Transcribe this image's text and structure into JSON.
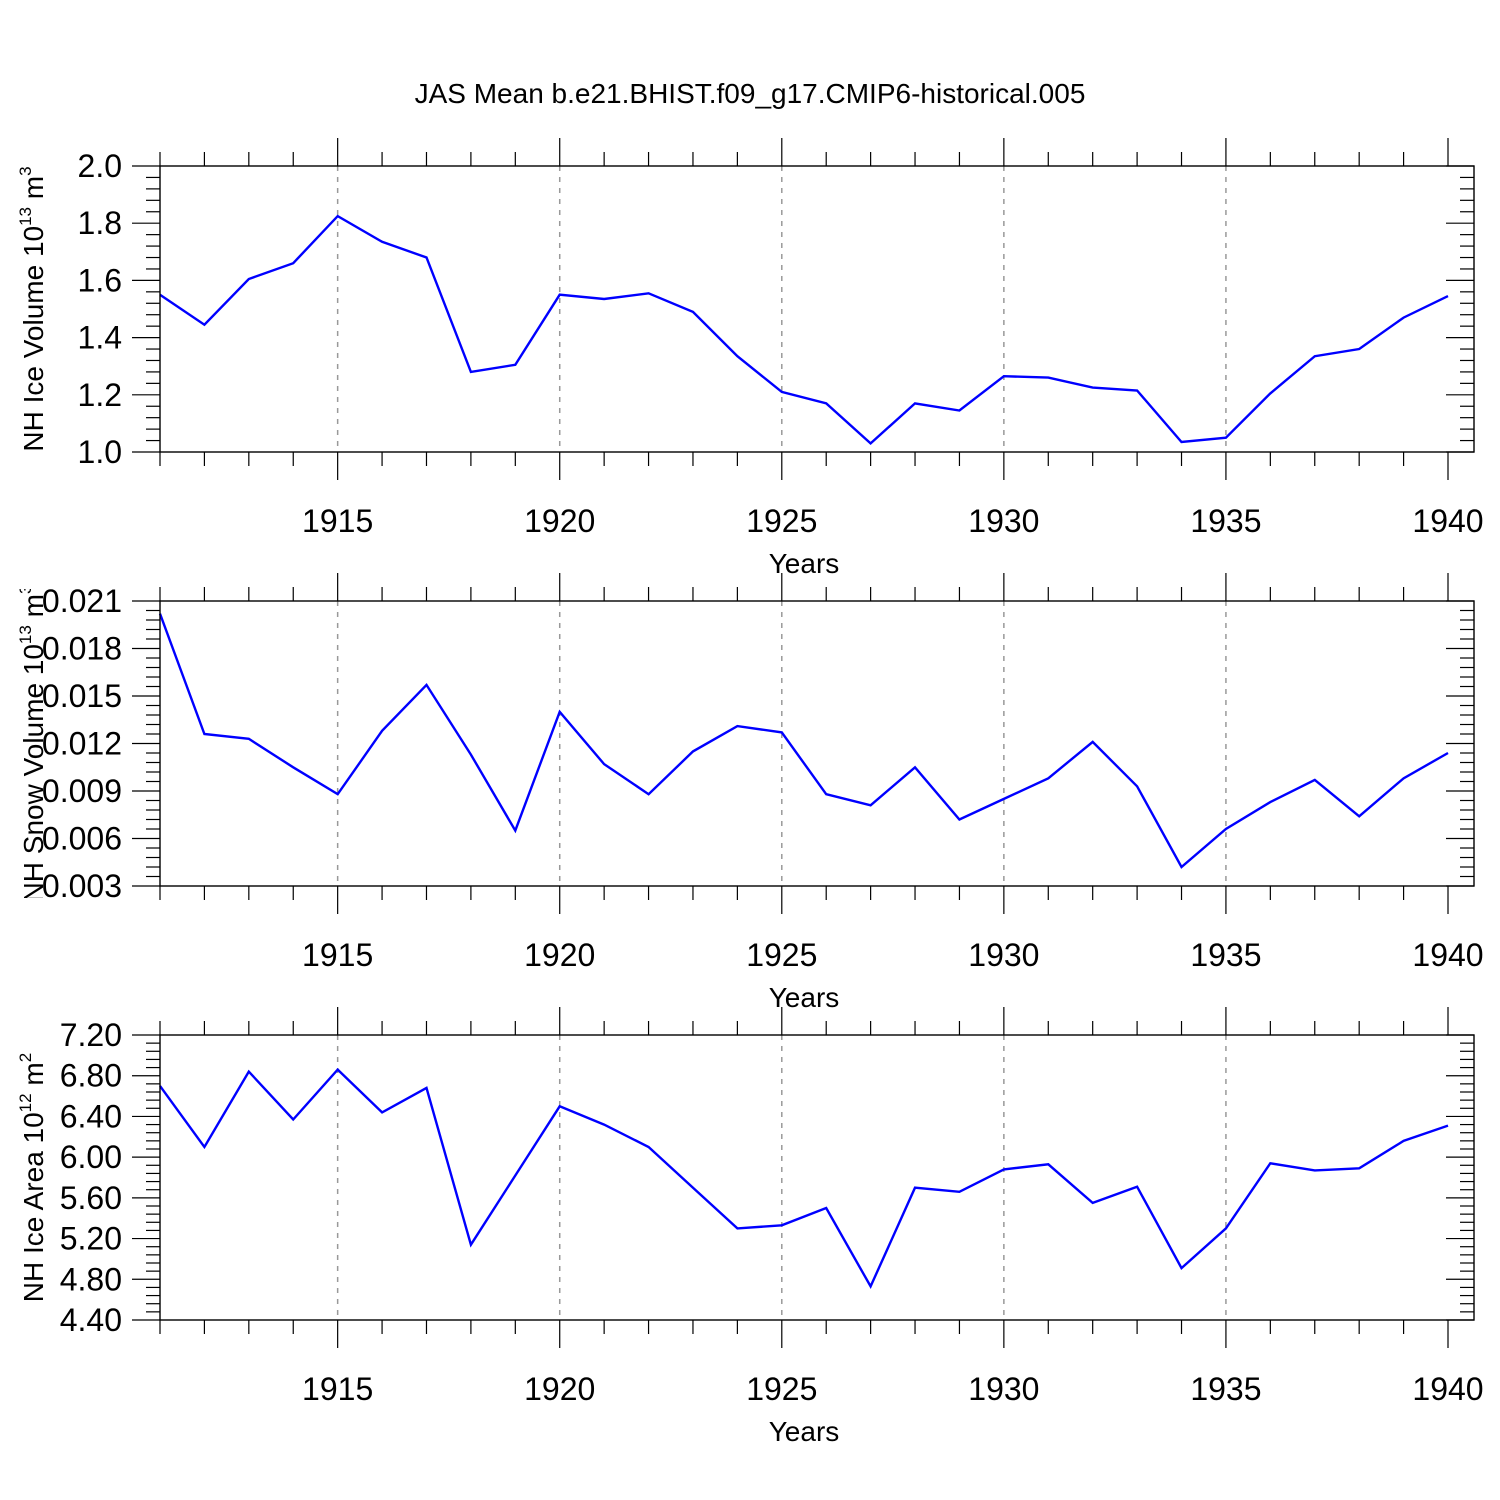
{
  "title": "JAS Mean b.e21.BHIST.f09_g17.CMIP6-historical.005",
  "colors": {
    "line": "#0000ff",
    "grid": "#999999",
    "axis": "#000000"
  },
  "chart_data": [
    {
      "type": "line",
      "xlabel": "Years",
      "ylabel": {
        "pre": "NH Ice Volume 10",
        "sup": "13",
        "mid": " m",
        "sup2": "3"
      },
      "xlim": [
        1911,
        1940
      ],
      "ylim": [
        1.0,
        2.0
      ],
      "x_ticks": [
        "1915",
        "1920",
        "1925",
        "1930",
        "1935",
        "1940"
      ],
      "y_ticks": [
        "1.0",
        "1.2",
        "1.4",
        "1.6",
        "1.8",
        "2.0"
      ],
      "grid": "vertical dashed at labeled years",
      "x": [
        1911,
        1912,
        1913,
        1914,
        1915,
        1916,
        1917,
        1918,
        1919,
        1920,
        1921,
        1922,
        1923,
        1924,
        1925,
        1926,
        1927,
        1928,
        1929,
        1930,
        1931,
        1932,
        1933,
        1934,
        1935,
        1936,
        1937,
        1938,
        1939,
        1940
      ],
      "values": [
        1.55,
        1.445,
        1.605,
        1.66,
        1.825,
        1.735,
        1.68,
        1.28,
        1.305,
        1.55,
        1.535,
        1.555,
        1.49,
        1.335,
        1.21,
        1.17,
        1.03,
        1.17,
        1.145,
        1.265,
        1.26,
        1.225,
        1.215,
        1.035,
        1.05,
        1.205,
        1.335,
        1.36,
        1.47,
        1.545
      ]
    },
    {
      "type": "line",
      "xlabel": "Years",
      "ylabel": {
        "pre": "NH Snow Volume 10",
        "sup": "13",
        "mid": " m",
        "sup2": "3"
      },
      "xlim": [
        1911,
        1940
      ],
      "ylim": [
        0.003,
        0.021
      ],
      "x_ticks": [
        "1915",
        "1920",
        "1925",
        "1930",
        "1935",
        "1940"
      ],
      "y_ticks": [
        "0.003",
        "0.006",
        "0.009",
        "0.012",
        "0.015",
        "0.018",
        "0.021"
      ],
      "grid": "vertical dashed at labeled years",
      "x": [
        1911,
        1912,
        1913,
        1914,
        1915,
        1916,
        1917,
        1918,
        1919,
        1920,
        1921,
        1922,
        1923,
        1924,
        1925,
        1926,
        1927,
        1928,
        1929,
        1930,
        1931,
        1932,
        1933,
        1934,
        1935,
        1936,
        1937,
        1938,
        1939,
        1940
      ],
      "values": [
        0.0202,
        0.0126,
        0.0123,
        0.0105,
        0.0088,
        0.0128,
        0.0157,
        0.0113,
        0.0065,
        0.014,
        0.0107,
        0.0088,
        0.0115,
        0.0131,
        0.0127,
        0.0088,
        0.0081,
        0.0105,
        0.0072,
        0.0085,
        0.0098,
        0.0121,
        0.0093,
        0.0042,
        0.0066,
        0.0083,
        0.0097,
        0.0074,
        0.0098,
        0.0114
      ]
    },
    {
      "type": "line",
      "xlabel": "Years",
      "ylabel": {
        "pre": "NH Ice Area 10",
        "sup": "12",
        "mid": " m",
        "sup2": "2"
      },
      "xlim": [
        1911,
        1940
      ],
      "ylim": [
        4.4,
        7.2
      ],
      "x_ticks": [
        "1915",
        "1920",
        "1925",
        "1930",
        "1935",
        "1940"
      ],
      "y_ticks": [
        "4.40",
        "4.80",
        "5.20",
        "5.60",
        "6.00",
        "6.40",
        "6.80",
        "7.20"
      ],
      "grid": "vertical dashed at labeled years",
      "x": [
        1911,
        1912,
        1913,
        1914,
        1915,
        1916,
        1917,
        1918,
        1919,
        1920,
        1921,
        1922,
        1923,
        1924,
        1925,
        1926,
        1927,
        1928,
        1929,
        1930,
        1931,
        1932,
        1933,
        1934,
        1935,
        1936,
        1937,
        1938,
        1939,
        1940
      ],
      "values": [
        6.7,
        6.1,
        6.84,
        6.37,
        6.86,
        6.44,
        6.68,
        5.14,
        5.82,
        6.5,
        6.32,
        6.1,
        5.7,
        5.3,
        5.33,
        5.5,
        4.73,
        5.7,
        5.66,
        5.88,
        5.93,
        5.55,
        5.71,
        4.91,
        5.3,
        5.94,
        5.87,
        5.89,
        6.16,
        6.31
      ]
    }
  ]
}
